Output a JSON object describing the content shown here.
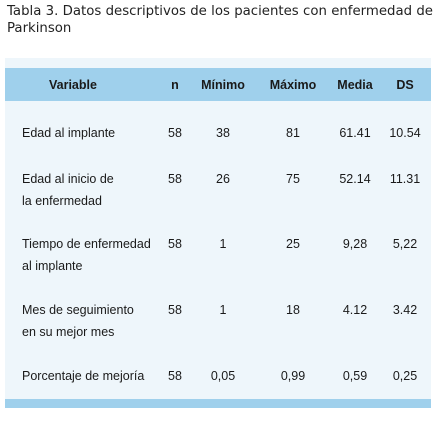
{
  "caption": "Tabla 3. Datos descriptivos de los pacientes con enfermedad de Parkinson",
  "headers": {
    "variable": "Variable",
    "n": "n",
    "min": "Mínimo",
    "max": "Máximo",
    "media": "Media",
    "ds": "DS"
  },
  "rows": [
    {
      "label_1": "Edad al implante",
      "label_2": "",
      "n": "58",
      "min": "38",
      "max": "81",
      "media": "61.41",
      "ds": "10.54"
    },
    {
      "label_1": "Edad al inicio de",
      "label_2": "la enfermedad",
      "n": "58",
      "min": "26",
      "max": "75",
      "media": "52.14",
      "ds": "11.31"
    },
    {
      "label_1": "Tiempo de enfermedad",
      "label_2": "al implante",
      "n": "58",
      "min": "1",
      "max": "25",
      "media": "9,28",
      "ds": "5,22"
    },
    {
      "label_1": "Mes de seguimiento",
      "label_2": "en su mejor mes",
      "n": "58",
      "min": "1",
      "max": "18",
      "media": "4.12",
      "ds": "3.42"
    },
    {
      "label_1": "Porcentaje de mejoría",
      "label_2": "",
      "n": "58",
      "min": "0,05",
      "max": "0,99",
      "media": "0,59",
      "ds": "0,25"
    }
  ]
}
